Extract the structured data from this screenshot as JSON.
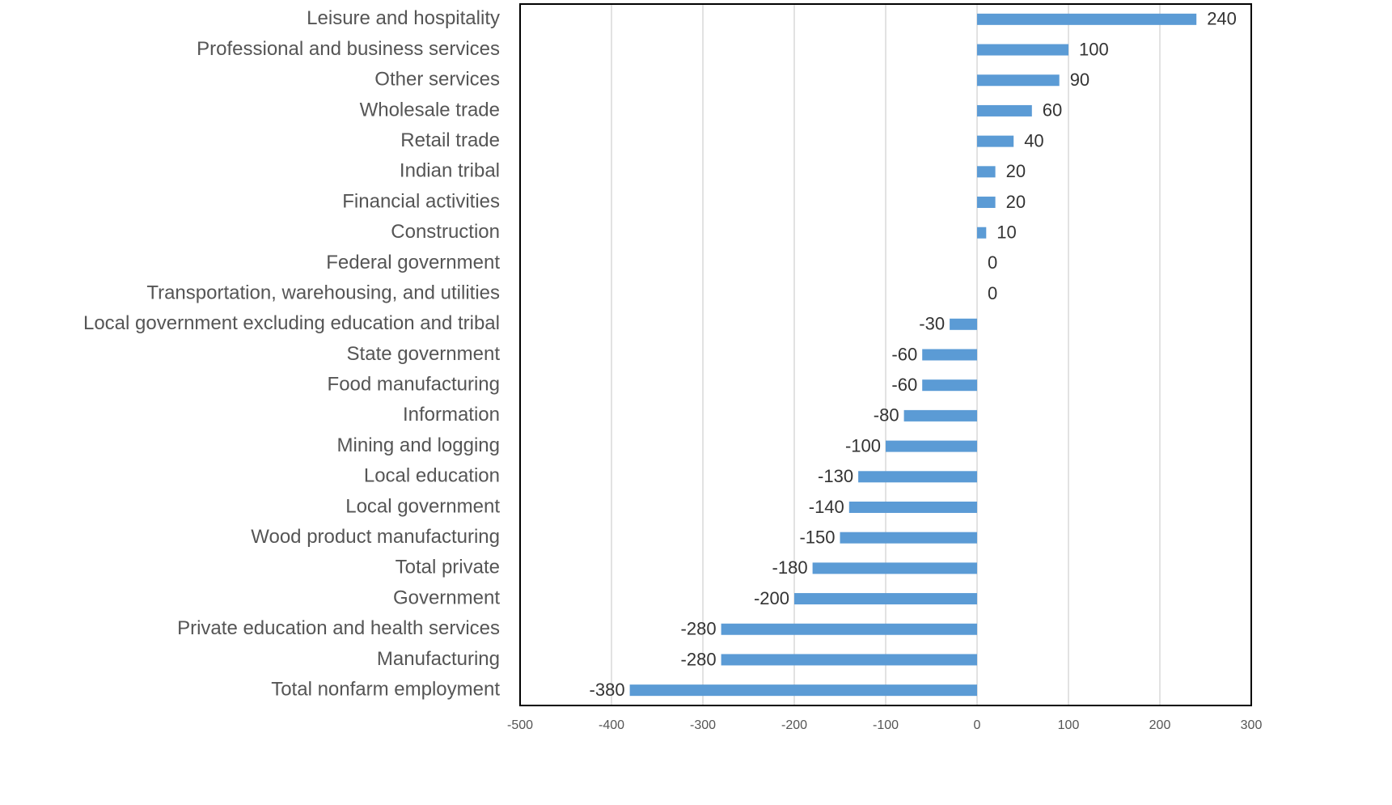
{
  "chart_data": {
    "type": "bar",
    "orientation": "horizontal",
    "categories": [
      "Leisure and hospitality",
      "Professional and business services",
      "Other services",
      "Wholesale trade",
      "Retail trade",
      "Indian tribal",
      "Financial activities",
      "Construction",
      "Federal government",
      "Transportation, warehousing, and utilities",
      "Local government excluding education and tribal",
      "State government",
      "Food manufacturing",
      "Information",
      "Mining and logging",
      "Local education",
      "Local government",
      "Wood product manufacturing",
      "Total private",
      "Government",
      "Private education and health services",
      "Manufacturing",
      "Total nonfarm employment"
    ],
    "values": [
      240,
      100,
      90,
      60,
      40,
      20,
      20,
      10,
      0,
      0,
      -30,
      -60,
      -60,
      -80,
      -100,
      -130,
      -140,
      -150,
      -180,
      -200,
      -280,
      -280,
      -380
    ],
    "color": "#5b9bd5",
    "xlim": [
      -500,
      300
    ],
    "xticks": [
      -500,
      -400,
      -300,
      -200,
      -100,
      0,
      100,
      200,
      300
    ],
    "grid": true
  }
}
